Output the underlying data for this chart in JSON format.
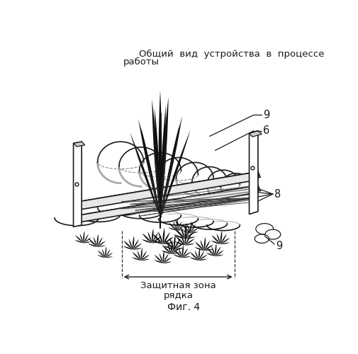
{
  "title_line1": "Общий  вид  устройства  в  процессе",
  "title_line2": "работы",
  "caption": "Фиг. 4",
  "label_bottom": "Защитная зона\nрядка",
  "label_6": "6",
  "label_8": "8",
  "label_9a": "9",
  "label_9b": "9",
  "bg_color": "#ffffff",
  "line_color": "#1a1a1a",
  "fig_width": 5.06,
  "fig_height": 5.0,
  "dpi": 100
}
